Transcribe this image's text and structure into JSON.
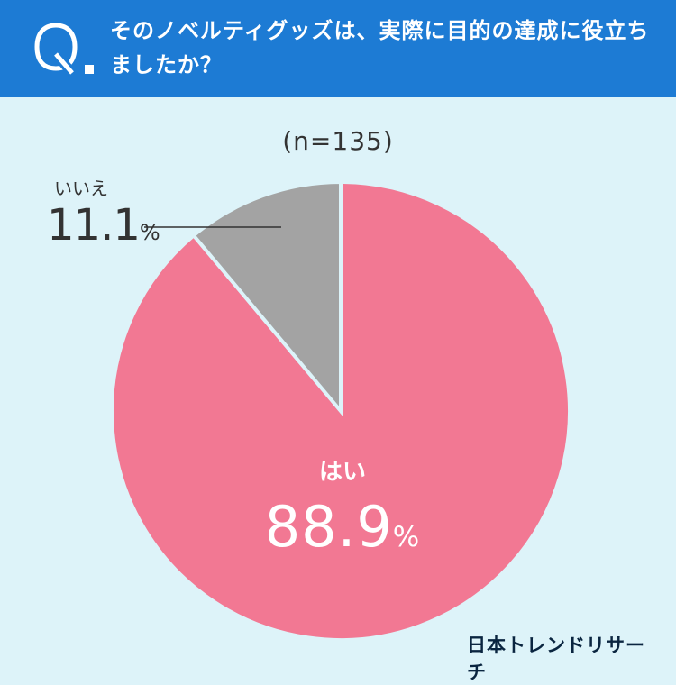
{
  "header": {
    "q_letter": "Q",
    "question": "そのノベルティグッズは、実際に目的の達成に役立ちましたか？"
  },
  "n_label": "(n=135)",
  "colors": {
    "header_bg": "#1d7bd4",
    "background": "#ddf3f9",
    "yes": "#f27893",
    "no": "#a3a3a3",
    "divider": "#ddf3f9"
  },
  "chart_data": {
    "type": "pie",
    "title": "そのノベルティグッズは、実際に目的の達成に役立ちましたか？",
    "n": 135,
    "slices": [
      {
        "label": "はい",
        "value": 88.9,
        "display": "88.9",
        "unit": "%",
        "color": "#f27893"
      },
      {
        "label": "いいえ",
        "value": 11.1,
        "display": "11.1",
        "unit": "%",
        "color": "#a3a3a3"
      }
    ],
    "start": "12 o'clock",
    "direction": "counterclockwise for いいえ, clockwise for はい"
  },
  "brand": "日本トレンドリサーチ"
}
